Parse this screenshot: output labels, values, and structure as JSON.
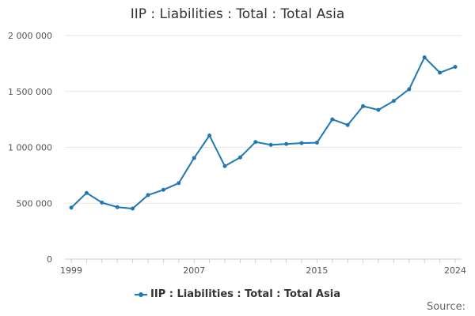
{
  "chart_data": {
    "type": "line",
    "title": "IIP : Liabilities : Total : Total Asia",
    "xlabel": "",
    "ylabel": "",
    "x": [
      1999,
      2000,
      2001,
      2002,
      2003,
      2004,
      2005,
      2006,
      2007,
      2008,
      2009,
      2010,
      2011,
      2012,
      2013,
      2014,
      2015,
      2016,
      2017,
      2018,
      2019,
      2020,
      2021,
      2022,
      2023,
      2024
    ],
    "series": [
      {
        "name": "IIP : Liabilities : Total : Total Asia",
        "values": [
          460000,
          592000,
          505000,
          465000,
          452000,
          573000,
          620000,
          680000,
          905000,
          1105000,
          832000,
          910000,
          1048000,
          1022000,
          1030000,
          1038000,
          1042000,
          1250000,
          1200000,
          1368000,
          1335000,
          1415000,
          1520000,
          1805000,
          1668000,
          1720000
        ]
      }
    ],
    "xlim": [
      1999,
      2024
    ],
    "ylim": [
      0,
      2000000
    ],
    "x_ticks": [
      "1999",
      "2007",
      "2015",
      "2024"
    ],
    "y_ticks": [
      "0",
      "500 000",
      "1 000 000",
      "1 500 000",
      "2 000 000"
    ],
    "y_tick_values": [
      0,
      500000,
      1000000,
      1500000,
      2000000
    ],
    "x_tick_values": [
      1999,
      2007,
      2015,
      2024
    ],
    "grid": true,
    "legend_position": "bottom-center",
    "color": "#1f77b4"
  },
  "source_label": "Source:"
}
